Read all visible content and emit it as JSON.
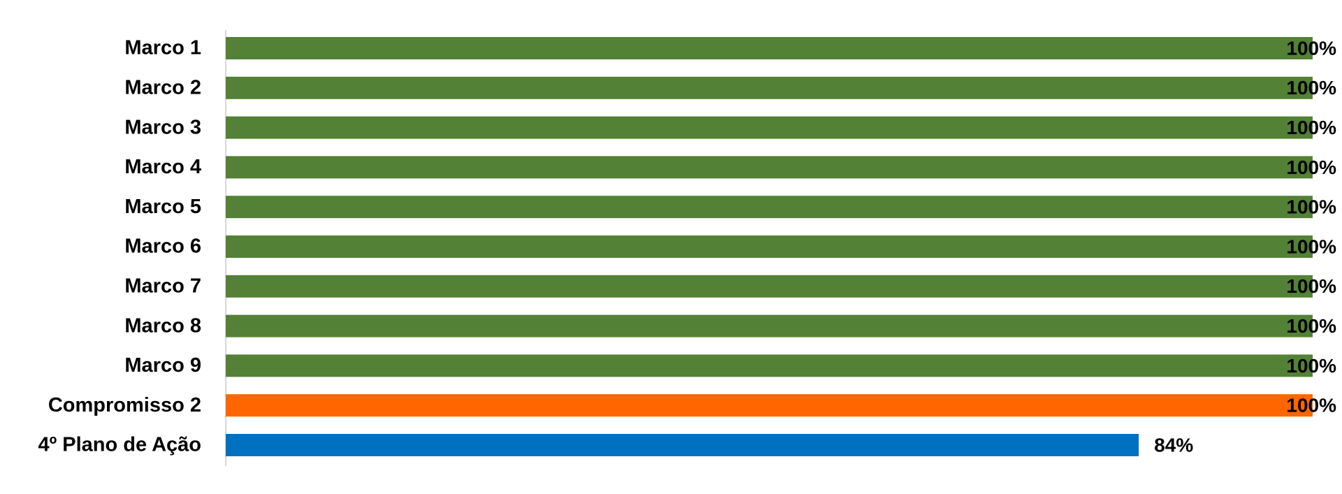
{
  "chart_data": {
    "type": "bar",
    "orientation": "horizontal",
    "categories": [
      "Marco 1",
      "Marco 2",
      "Marco 3",
      "Marco 4",
      "Marco 5",
      "Marco 6",
      "Marco 7",
      "Marco 8",
      "Marco 9",
      "Compromisso 2",
      "4º Plano de Ação"
    ],
    "values": [
      100,
      100,
      100,
      100,
      100,
      100,
      100,
      100,
      100,
      100,
      84
    ],
    "value_labels": [
      "100%",
      "100%",
      "100%",
      "100%",
      "100%",
      "100%",
      "100%",
      "100%",
      "100%",
      "100%",
      "84%"
    ],
    "colors": [
      "#538135",
      "#538135",
      "#538135",
      "#538135",
      "#538135",
      "#538135",
      "#538135",
      "#538135",
      "#538135",
      "#ff6600",
      "#0070c0"
    ],
    "xlim": [
      0,
      100
    ]
  }
}
